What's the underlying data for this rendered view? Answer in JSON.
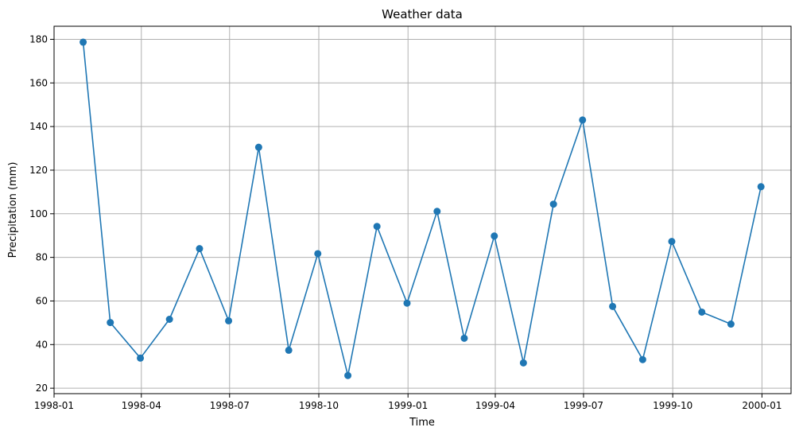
{
  "chart_data": {
    "type": "line",
    "title": "Weather data",
    "xlabel": "Time",
    "ylabel": "Precipitation (mm)",
    "grid": true,
    "x_axis_type": "date",
    "xlim": [
      "1998-01-01",
      "2000-01-31"
    ],
    "ylim": [
      17.5,
      186
    ],
    "x_ticks": [
      "1998-01",
      "1998-04",
      "1998-07",
      "1998-10",
      "1999-01",
      "1999-04",
      "1999-07",
      "1999-10",
      "2000-01"
    ],
    "y_ticks": [
      20,
      40,
      60,
      80,
      100,
      120,
      140,
      160,
      180
    ],
    "series": [
      {
        "color": "#1f77b4",
        "marker": "circle",
        "x": [
          "1998-01-31",
          "1998-02-28",
          "1998-03-31",
          "1998-04-30",
          "1998-05-31",
          "1998-06-30",
          "1998-07-31",
          "1998-08-31",
          "1998-09-30",
          "1998-10-31",
          "1998-11-30",
          "1998-12-31",
          "1999-01-31",
          "1999-02-28",
          "1999-03-31",
          "1999-04-30",
          "1999-05-31",
          "1999-06-30",
          "1999-07-31",
          "1999-08-31",
          "1999-09-30",
          "1999-10-31",
          "1999-11-30",
          "1999-12-31"
        ],
        "values": [
          178.7,
          50.1,
          33.8,
          51.6,
          84.0,
          50.9,
          130.5,
          37.4,
          81.7,
          25.8,
          94.2,
          59.0,
          101.1,
          42.9,
          89.8,
          31.6,
          104.4,
          143.0,
          57.5,
          33.1,
          87.3,
          54.9,
          49.4,
          112.4
        ]
      }
    ]
  }
}
